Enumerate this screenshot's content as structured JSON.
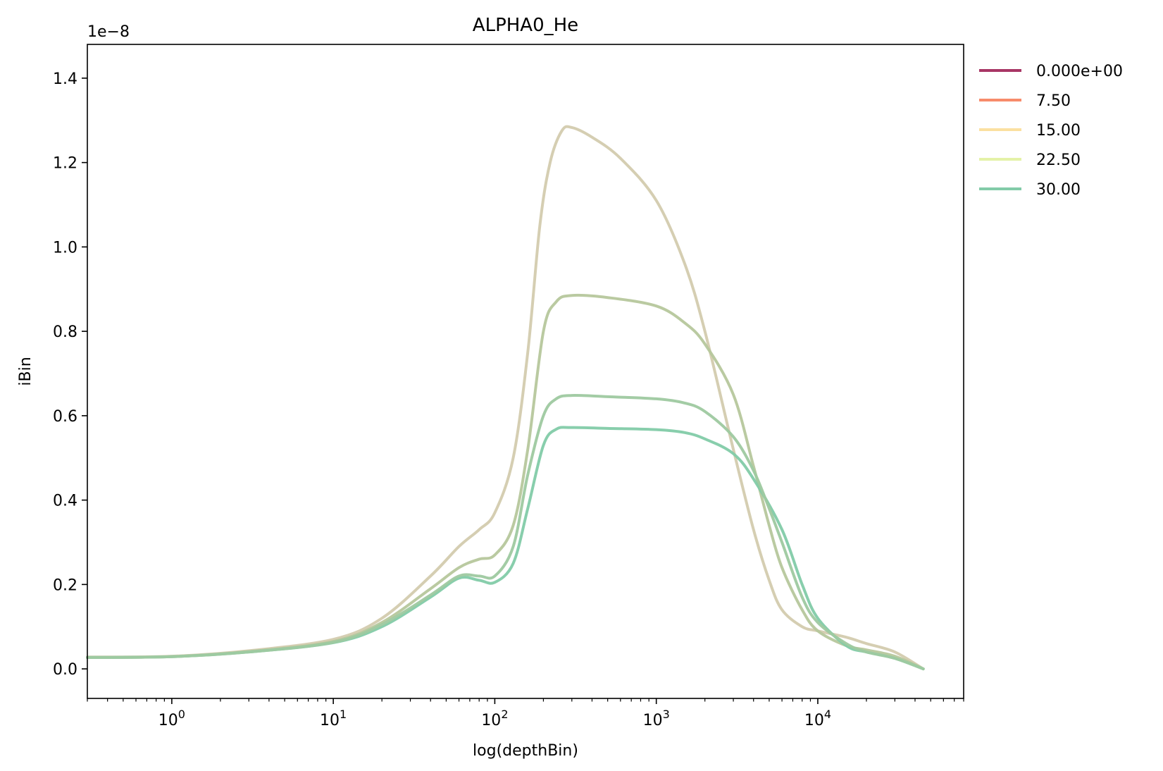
{
  "chart_data": {
    "type": "line",
    "title": "ALPHA0_He",
    "xlabel": "log(depthBin)",
    "ylabel": "iBin",
    "y_offset_text": "1e−8",
    "xscale": "log",
    "xlim": [
      0.3,
      80000
    ],
    "ylim": [
      -0.07,
      1.48
    ],
    "y_units_scale": 1e-08,
    "x_ticks": [
      {
        "value": 1,
        "base": "10",
        "exp": "0"
      },
      {
        "value": 10,
        "base": "10",
        "exp": "1"
      },
      {
        "value": 100,
        "base": "10",
        "exp": "2"
      },
      {
        "value": 1000,
        "base": "10",
        "exp": "3"
      },
      {
        "value": 10000,
        "base": "10",
        "exp": "4"
      }
    ],
    "y_ticks": [
      "0.0",
      "0.2",
      "0.4",
      "0.6",
      "0.8",
      "1.0",
      "1.2",
      "1.4"
    ],
    "grid": false,
    "legend_position": "outside-right-top",
    "series": [
      {
        "name": "0.000e+00",
        "color": "#a83665",
        "points": []
      },
      {
        "name": "7.50",
        "color": "#f78b6b",
        "points": []
      },
      {
        "name": "15.00",
        "color": "#fbe0a0",
        "points": [
          [
            0.3,
            0.028
          ],
          [
            1,
            0.03
          ],
          [
            3,
            0.043
          ],
          [
            10,
            0.07
          ],
          [
            20,
            0.12
          ],
          [
            40,
            0.22
          ],
          [
            60,
            0.29
          ],
          [
            80,
            0.33
          ],
          [
            100,
            0.37
          ],
          [
            130,
            0.5
          ],
          [
            160,
            0.75
          ],
          [
            190,
            1.05
          ],
          [
            220,
            1.2
          ],
          [
            260,
            1.275
          ],
          [
            300,
            1.283
          ],
          [
            400,
            1.26
          ],
          [
            600,
            1.21
          ],
          [
            1000,
            1.11
          ],
          [
            1500,
            0.96
          ],
          [
            2000,
            0.8
          ],
          [
            3000,
            0.52
          ],
          [
            4000,
            0.33
          ],
          [
            5000,
            0.21
          ],
          [
            6000,
            0.14
          ],
          [
            8000,
            0.1
          ],
          [
            10000,
            0.09
          ],
          [
            15000,
            0.075
          ],
          [
            20000,
            0.06
          ],
          [
            30000,
            0.04
          ],
          [
            45000,
            0.0
          ]
        ]
      },
      {
        "name": "22.50",
        "color": "#e4f2a8",
        "points": [
          [
            0.3,
            0.027
          ],
          [
            1,
            0.029
          ],
          [
            3,
            0.041
          ],
          [
            10,
            0.065
          ],
          [
            20,
            0.11
          ],
          [
            40,
            0.19
          ],
          [
            60,
            0.24
          ],
          [
            80,
            0.26
          ],
          [
            100,
            0.27
          ],
          [
            130,
            0.34
          ],
          [
            160,
            0.52
          ],
          [
            200,
            0.8
          ],
          [
            240,
            0.87
          ],
          [
            300,
            0.885
          ],
          [
            500,
            0.88
          ],
          [
            1000,
            0.86
          ],
          [
            1500,
            0.82
          ],
          [
            2000,
            0.77
          ],
          [
            3000,
            0.65
          ],
          [
            4000,
            0.48
          ],
          [
            5000,
            0.34
          ],
          [
            6000,
            0.24
          ],
          [
            8000,
            0.14
          ],
          [
            10000,
            0.09
          ],
          [
            15000,
            0.055
          ],
          [
            20000,
            0.045
          ],
          [
            30000,
            0.03
          ],
          [
            45000,
            0.0
          ]
        ]
      },
      {
        "name": "30.00",
        "color": "#82cba8",
        "points": [
          [
            0.3,
            0.027
          ],
          [
            1,
            0.029
          ],
          [
            3,
            0.04
          ],
          [
            10,
            0.062
          ],
          [
            20,
            0.1
          ],
          [
            40,
            0.17
          ],
          [
            60,
            0.215
          ],
          [
            80,
            0.21
          ],
          [
            100,
            0.205
          ],
          [
            130,
            0.25
          ],
          [
            160,
            0.38
          ],
          [
            200,
            0.53
          ],
          [
            240,
            0.568
          ],
          [
            300,
            0.572
          ],
          [
            500,
            0.57
          ],
          [
            1000,
            0.567
          ],
          [
            1500,
            0.56
          ],
          [
            2000,
            0.545
          ],
          [
            3000,
            0.51
          ],
          [
            4000,
            0.45
          ],
          [
            6000,
            0.33
          ],
          [
            8000,
            0.2
          ],
          [
            10000,
            0.12
          ],
          [
            15000,
            0.055
          ],
          [
            20000,
            0.04
          ],
          [
            30000,
            0.025
          ],
          [
            45000,
            0.0
          ]
        ]
      },
      {
        "name": "",
        "color": "#9ec9a0",
        "points": [
          [
            0.3,
            0.027
          ],
          [
            1,
            0.029
          ],
          [
            3,
            0.04
          ],
          [
            10,
            0.063
          ],
          [
            20,
            0.105
          ],
          [
            40,
            0.175
          ],
          [
            60,
            0.22
          ],
          [
            80,
            0.22
          ],
          [
            100,
            0.22
          ],
          [
            130,
            0.29
          ],
          [
            160,
            0.46
          ],
          [
            200,
            0.6
          ],
          [
            240,
            0.64
          ],
          [
            300,
            0.648
          ],
          [
            500,
            0.645
          ],
          [
            1000,
            0.64
          ],
          [
            1500,
            0.63
          ],
          [
            2000,
            0.61
          ],
          [
            3000,
            0.55
          ],
          [
            4000,
            0.47
          ],
          [
            5000,
            0.38
          ],
          [
            6000,
            0.3
          ],
          [
            8000,
            0.17
          ],
          [
            10000,
            0.11
          ],
          [
            15000,
            0.06
          ],
          [
            20000,
            0.04
          ],
          [
            30000,
            0.025
          ],
          [
            45000,
            0.0
          ]
        ]
      }
    ]
  }
}
